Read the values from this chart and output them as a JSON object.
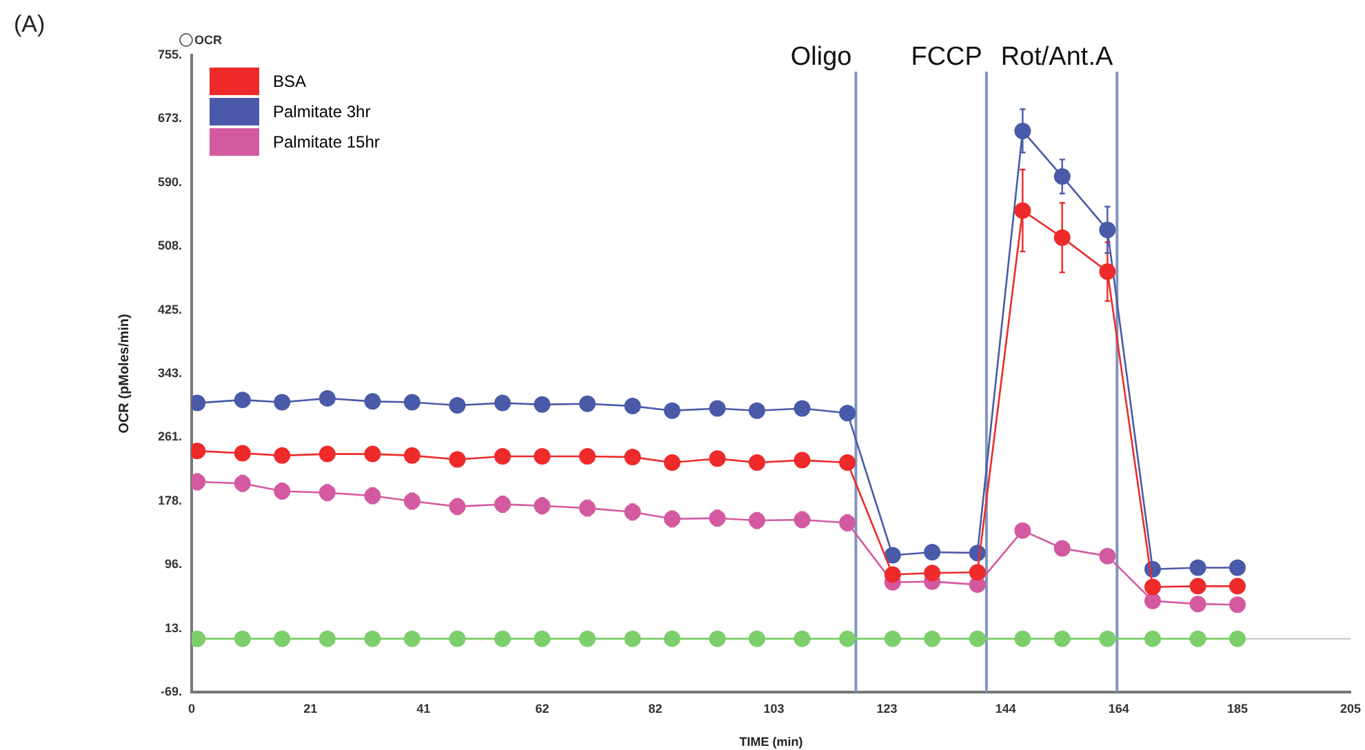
{
  "chart_data": {
    "type": "line",
    "annotations": [
      "(A)",
      "OCR"
    ],
    "xlabel": "TIME (min)",
    "ylabel": "OCR (pMoles/min)",
    "x": [
      1,
      9,
      16,
      24,
      32,
      39,
      47,
      55,
      62,
      70,
      78,
      85,
      93,
      100,
      108,
      116,
      124,
      131,
      139,
      147,
      154,
      162,
      170,
      178,
      185
    ],
    "series": [
      {
        "name": "BSA",
        "color": "#ee2a2a",
        "values": [
          243,
          240,
          237,
          239,
          239,
          237,
          232,
          236,
          236,
          236,
          235,
          228,
          233,
          228,
          231,
          228,
          83,
          85,
          86,
          554,
          519,
          475,
          67,
          68,
          68
        ],
        "errors": [
          null,
          null,
          null,
          null,
          null,
          null,
          null,
          null,
          null,
          null,
          null,
          null,
          null,
          null,
          null,
          null,
          null,
          null,
          null,
          53,
          45,
          38,
          null,
          null,
          null
        ]
      },
      {
        "name": "Palmitate 3hr",
        "color": "#4a5aa8",
        "values": [
          305,
          309,
          306,
          311,
          307,
          306,
          302,
          305,
          303,
          304,
          301,
          295,
          298,
          295,
          298,
          292,
          108,
          112,
          111,
          657,
          598,
          529,
          90,
          92,
          92
        ],
        "errors": [
          null,
          null,
          null,
          null,
          null,
          null,
          null,
          null,
          null,
          null,
          null,
          null,
          null,
          null,
          null,
          null,
          null,
          null,
          null,
          28,
          22,
          30,
          null,
          null,
          null
        ]
      },
      {
        "name": "Palmitate 15hr",
        "color": "#d45aa0",
        "values": [
          203,
          201,
          191,
          189,
          185,
          178,
          171,
          174,
          172,
          169,
          164,
          155,
          156,
          153,
          154,
          150,
          73,
          74,
          70,
          140,
          117,
          107,
          49,
          45,
          44
        ],
        "errors": [
          10,
          10,
          10,
          10,
          10,
          10,
          10,
          10,
          10,
          10,
          10,
          10,
          10,
          10,
          10,
          10,
          null,
          null,
          null,
          null,
          null,
          null,
          null,
          null,
          null
        ]
      },
      {
        "color": "#7ccf6a",
        "values": [
          0,
          0,
          0,
          0,
          0,
          0,
          0,
          0,
          0,
          0,
          0,
          0,
          0,
          0,
          0,
          0,
          0,
          0,
          0,
          0,
          0,
          0,
          0,
          0,
          0
        ]
      }
    ],
    "xlim": [
      0,
      205
    ],
    "xticks": [
      0,
      21,
      41,
      62,
      82,
      103,
      123,
      144,
      164,
      185,
      205
    ],
    "ylim": [
      -69,
      755
    ],
    "yticks": [
      {
        "value": -69,
        "label": "-69."
      },
      {
        "value": 13,
        "label": "13."
      },
      {
        "value": 96,
        "label": "96."
      },
      {
        "value": 178,
        "label": "178."
      },
      {
        "value": 261,
        "label": "261."
      },
      {
        "value": 343,
        "label": "343."
      },
      {
        "value": 425,
        "label": "425."
      },
      {
        "value": 508,
        "label": "508."
      },
      {
        "value": 590,
        "label": "590."
      },
      {
        "value": 673,
        "label": "673."
      },
      {
        "value": 755,
        "label": "755."
      }
    ],
    "ref_lines": [
      {
        "axis": "x",
        "value": 117.5,
        "label": "Oligo",
        "color": "#7f95c0"
      },
      {
        "axis": "x",
        "value": 140.6,
        "label": "FCCP",
        "color": "#7f95c0"
      },
      {
        "axis": "x",
        "value": 163.7,
        "label": "Rot/Ant.A",
        "color": "#7f95c0"
      },
      {
        "axis": "y",
        "value": 0,
        "color": "#c8c8c8"
      }
    ],
    "grid": false,
    "legend": "top left",
    "marker": "circle",
    "line_style": "solid"
  }
}
